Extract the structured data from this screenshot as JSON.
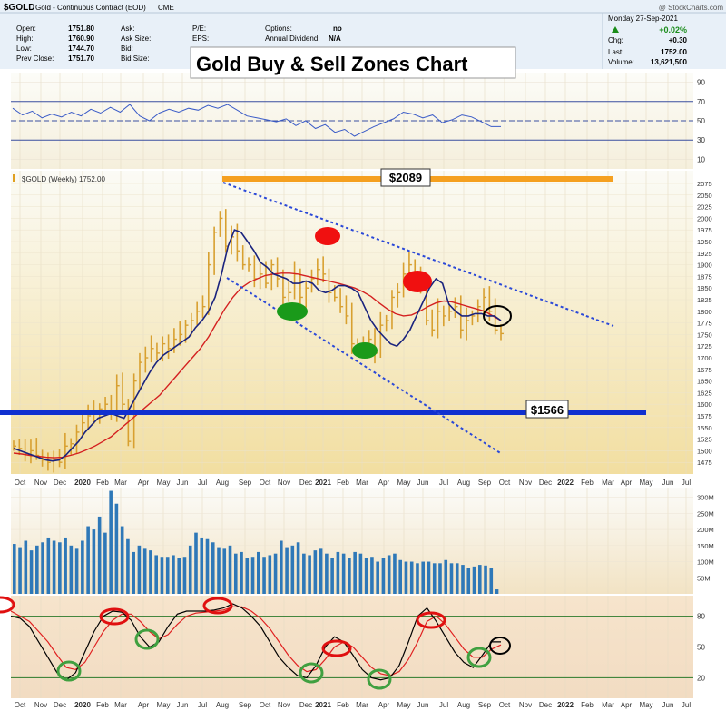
{
  "header": {
    "symbol": "$GOLD",
    "name": "Gold - Continuous Contract (EOD)",
    "exchange": "CME",
    "watermark": "@ StockCharts.com",
    "date": "Monday 27-Sep-2021",
    "quote_rows": [
      {
        "label": "Open:",
        "value": "1751.80"
      },
      {
        "label": "High:",
        "value": "1760.90"
      },
      {
        "label": "Low:",
        "value": "1744.70"
      },
      {
        "label": "Prev Close:",
        "value": "1751.70"
      }
    ],
    "ask_rows": [
      {
        "label": "Ask:",
        "value": ""
      },
      {
        "label": "Ask Size:",
        "value": ""
      },
      {
        "label": "Bid:",
        "value": ""
      },
      {
        "label": "Bid Size:",
        "value": ""
      }
    ],
    "pe_label": "P/E:",
    "eps_label": "EPS:",
    "options_label": "Options:",
    "options_value": "no",
    "dividend_label": "Annual Dividend:",
    "dividend_value": "N/A",
    "change_pct": "+0.02%",
    "chg_label": "Chg:",
    "chg_value": "+0.30",
    "last_label": "Last:",
    "last_value": "1752.00",
    "volume_label": "Volume:",
    "volume_value": "13,621,500",
    "chart_title": "Gold Buy & Sell Zones Chart",
    "colors": {
      "up": "#1a8c1a",
      "bg": "#e8f0f8"
    }
  },
  "chart_data": [
    {
      "type": "line",
      "panel": "rsi",
      "ylim": [
        0,
        100
      ],
      "yticks": [
        10,
        30,
        50,
        70,
        90
      ],
      "levels": [
        70,
        50,
        30
      ],
      "color": "#3a5bc7",
      "x_weeks": [
        0,
        2,
        4,
        6,
        8,
        10,
        12,
        14,
        16,
        18,
        20,
        22,
        24,
        26,
        28,
        30,
        32,
        34,
        36,
        38,
        40,
        42,
        44,
        46,
        48,
        50,
        52,
        54,
        56,
        58,
        60,
        62,
        64,
        66,
        68,
        70,
        72,
        74,
        76,
        78,
        80,
        82,
        84,
        86,
        88,
        90,
        92,
        94,
        96,
        98,
        100
      ],
      "values": [
        63,
        56,
        60,
        53,
        57,
        54,
        59,
        55,
        62,
        58,
        64,
        59,
        67,
        55,
        50,
        58,
        62,
        59,
        63,
        61,
        66,
        63,
        67,
        61,
        55,
        53,
        51,
        49,
        52,
        45,
        50,
        42,
        46,
        38,
        41,
        34,
        39,
        44,
        48,
        52,
        59,
        57,
        53,
        56,
        48,
        51,
        56,
        54,
        49,
        44,
        44
      ]
    },
    {
      "type": "candlestick",
      "panel": "price",
      "title": "$GOLD (Weekly) 1752.00",
      "ylim": [
        1450,
        2075
      ],
      "yticks": [
        1475,
        1500,
        1525,
        1550,
        1575,
        1600,
        1625,
        1650,
        1675,
        1700,
        1725,
        1750,
        1775,
        1800,
        1825,
        1850,
        1875,
        1900,
        1925,
        1950,
        1975,
        2000,
        2025,
        2050,
        2075
      ],
      "x_labels": [
        "Oct",
        "Nov",
        "Dec",
        "2020",
        "Feb",
        "Mar",
        "Apr",
        "May",
        "Jun",
        "Jul",
        "Aug",
        "Sep",
        "Oct",
        "Nov",
        "Dec",
        "2021",
        "Feb",
        "Mar",
        "Apr",
        "May",
        "Jun",
        "Jul",
        "Aug",
        "Sep",
        "Oct",
        "Nov",
        "Dec",
        "2022",
        "Feb",
        "Mar",
        "Apr",
        "May",
        "Jun",
        "Jul"
      ],
      "close": [
        1510,
        1505,
        1495,
        1500,
        1490,
        1480,
        1475,
        1480,
        1475,
        1510,
        1515,
        1540,
        1560,
        1575,
        1580,
        1590,
        1600,
        1580,
        1640,
        1600,
        1520,
        1650,
        1690,
        1700,
        1720,
        1710,
        1730,
        1720,
        1740,
        1750,
        1770,
        1780,
        1800,
        1810,
        1900,
        1970,
        2000,
        1940,
        1960,
        1930,
        1900,
        1900,
        1870,
        1880,
        1860,
        1900,
        1870,
        1830,
        1840,
        1880,
        1830,
        1850,
        1870,
        1890,
        1880,
        1840,
        1830,
        1810,
        1790,
        1730,
        1720,
        1730,
        1740,
        1710,
        1770,
        1780,
        1830,
        1840,
        1880,
        1900,
        1880,
        1860,
        1780,
        1760,
        1800,
        1790,
        1800,
        1810,
        1760,
        1780,
        1790,
        1810,
        1830,
        1800,
        1760,
        1752
      ],
      "ema_fast": [
        1505,
        1500,
        1495,
        1490,
        1485,
        1480,
        1478,
        1480,
        1490,
        1505,
        1520,
        1540,
        1555,
        1570,
        1575,
        1580,
        1575,
        1570,
        1595,
        1620,
        1645,
        1670,
        1690,
        1705,
        1715,
        1725,
        1735,
        1745,
        1765,
        1780,
        1800,
        1830,
        1880,
        1940,
        1975,
        1970,
        1950,
        1930,
        1905,
        1895,
        1880,
        1875,
        1870,
        1860,
        1860,
        1865,
        1860,
        1845,
        1840,
        1845,
        1855,
        1855,
        1850,
        1840,
        1810,
        1780,
        1760,
        1745,
        1730,
        1725,
        1740,
        1760,
        1790,
        1820,
        1850,
        1870,
        1860,
        1815,
        1800,
        1790,
        1790,
        1795,
        1795,
        1790,
        1790,
        1780
      ],
      "ema_slow": [
        1495,
        1493,
        1490,
        1488,
        1486,
        1485,
        1486,
        1490,
        1495,
        1502,
        1510,
        1520,
        1530,
        1545,
        1560,
        1575,
        1590,
        1605,
        1620,
        1640,
        1660,
        1680,
        1700,
        1720,
        1745,
        1775,
        1805,
        1830,
        1850,
        1862,
        1870,
        1877,
        1880,
        1882,
        1882,
        1880,
        1876,
        1872,
        1868,
        1864,
        1860,
        1855,
        1850,
        1842,
        1832,
        1818,
        1805,
        1795,
        1790,
        1792,
        1800,
        1810,
        1818,
        1822,
        1820,
        1815,
        1810,
        1805,
        1800,
        1790,
        1780
      ]
    },
    {
      "type": "bar",
      "panel": "volume",
      "ylim": [
        0,
        330
      ],
      "yticks": [
        "300M",
        "250M",
        "200M",
        "150M",
        "100M",
        "50M"
      ],
      "values": [
        155,
        145,
        165,
        135,
        150,
        160,
        175,
        165,
        160,
        175,
        150,
        140,
        165,
        210,
        200,
        240,
        190,
        320,
        280,
        210,
        170,
        130,
        150,
        140,
        135,
        120,
        115,
        115,
        120,
        110,
        115,
        150,
        190,
        175,
        170,
        160,
        145,
        140,
        150,
        125,
        130,
        110,
        115,
        130,
        115,
        120,
        125,
        165,
        145,
        150,
        160,
        125,
        120,
        135,
        140,
        125,
        110,
        130,
        125,
        110,
        130,
        125,
        110,
        115,
        100,
        110,
        120,
        125,
        105,
        100,
        100,
        95,
        100,
        100,
        95,
        95,
        105,
        95,
        95,
        90,
        80,
        85,
        90,
        88,
        80,
        14
      ]
    },
    {
      "type": "line",
      "panel": "stochastic",
      "ylim": [
        0,
        100
      ],
      "yticks": [
        20,
        50,
        80
      ],
      "levels": [
        80,
        50,
        20
      ],
      "k_line": [
        80,
        78,
        70,
        55,
        40,
        25,
        18,
        25,
        45,
        65,
        80,
        85,
        84,
        76,
        60,
        50,
        55,
        70,
        82,
        85,
        85,
        85,
        86,
        88,
        92,
        88,
        80,
        70,
        55,
        40,
        30,
        22,
        20,
        32,
        50,
        60,
        55,
        42,
        28,
        20,
        18,
        20,
        32,
        55,
        80,
        88,
        75,
        60,
        45,
        35,
        30,
        42,
        55,
        55
      ],
      "d_line": [
        85,
        80,
        75,
        65,
        55,
        42,
        30,
        28,
        35,
        50,
        65,
        76,
        82,
        82,
        75,
        65,
        58,
        62,
        72,
        80,
        83,
        84,
        85,
        86,
        89,
        89,
        85,
        78,
        68,
        55,
        42,
        32,
        26,
        28,
        38,
        50,
        55,
        50,
        40,
        30,
        24,
        22,
        26,
        38,
        55,
        75,
        80,
        72,
        60,
        48,
        40,
        40,
        48,
        52
      ],
      "x_labels": [
        "Oct",
        "Nov",
        "Dec",
        "2020",
        "Feb",
        "Mar",
        "Apr",
        "May",
        "Jun",
        "Jul",
        "Aug",
        "Sep",
        "Oct",
        "Nov",
        "Dec",
        "2021",
        "Feb",
        "Mar",
        "Apr",
        "May",
        "Jun",
        "Jul",
        "Aug",
        "Sep",
        "Oct",
        "Nov",
        "Dec",
        "2022",
        "Feb",
        "Mar",
        "Apr",
        "May",
        "Jun",
        "Jul"
      ]
    }
  ],
  "annotations": {
    "resistance_label": "$2089",
    "support_label": "$1566"
  }
}
